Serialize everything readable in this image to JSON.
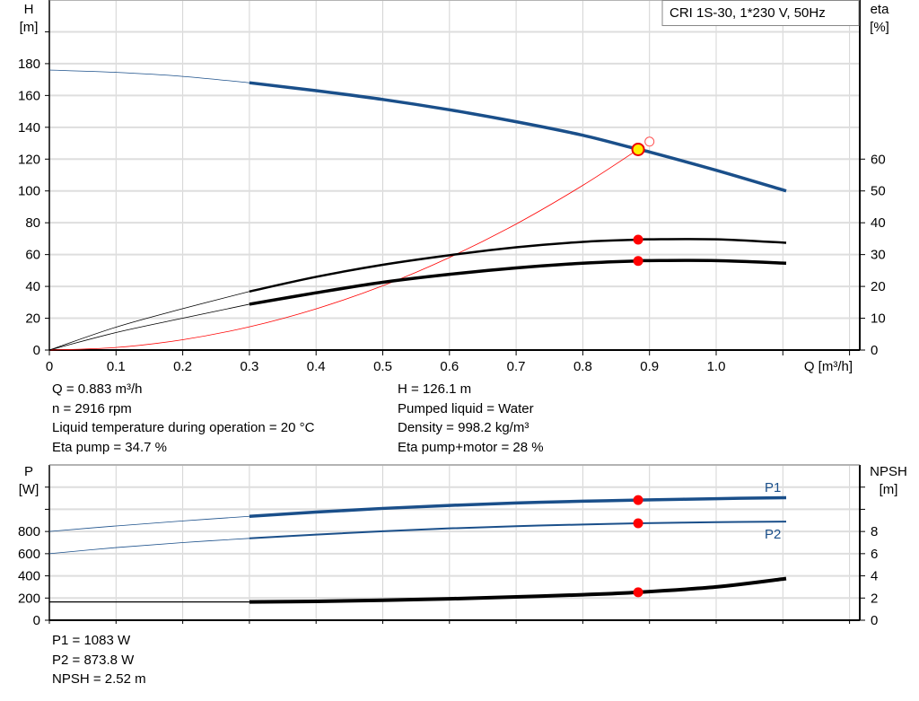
{
  "chart_data": [
    {
      "type": "line",
      "title": "CRI 1S-30, 1*230 V, 50Hz",
      "xlabel": "Q [m³/h]",
      "ylabel": "H\n[m]",
      "ylabel_lines": [
        "H",
        "[m]"
      ],
      "y2label_lines": [
        "eta",
        "[%]"
      ],
      "xlim": [
        0,
        1.2
      ],
      "ylim": [
        0,
        220
      ],
      "y2lim": [
        0,
        110
      ],
      "grid": true,
      "xticks": [
        "0",
        "0.1",
        "0.2",
        "0.3",
        "0.4",
        "0.5",
        "0.6",
        "0.7",
        "0.8",
        "0.9",
        "1.0"
      ],
      "yticks": [
        "0",
        "20",
        "40",
        "60",
        "80",
        "100",
        "120",
        "140",
        "160",
        "180"
      ],
      "y2ticks": [
        "0",
        "10",
        "20",
        "30",
        "40",
        "50",
        "60"
      ],
      "x": [
        0,
        0.1,
        0.2,
        0.3,
        0.4,
        0.5,
        0.6,
        0.7,
        0.8,
        0.883,
        0.9,
        1.0,
        1.105
      ],
      "series": [
        {
          "axis": "left",
          "color": "#1a4f8a",
          "values": [
            176,
            174.5,
            172,
            168,
            163,
            157.5,
            151,
            143.5,
            135,
            126.1,
            124.5,
            113,
            100
          ]
        },
        {
          "axis": "right",
          "color": "#000000",
          "values": [
            0,
            7.2,
            13,
            18.4,
            23,
            26.8,
            29.8,
            32.3,
            34,
            34.7,
            34.8,
            34.8,
            33.7
          ]
        },
        {
          "axis": "right",
          "color": "#000000",
          "values": [
            0,
            5.5,
            10,
            14.4,
            18,
            21.3,
            23.8,
            25.8,
            27.3,
            28,
            28.1,
            28.1,
            27.3
          ]
        }
      ],
      "system_curve": {
        "color": "#ff0000",
        "x": [
          0,
          0.1,
          0.2,
          0.3,
          0.4,
          0.5,
          0.6,
          0.7,
          0.8,
          0.883
        ],
        "values": [
          0,
          1.6,
          6.5,
          14.6,
          25.9,
          40.4,
          58.2,
          79.2,
          103.5,
          126.1
        ]
      },
      "duty_point": {
        "q": 0.883,
        "h": 126.1,
        "eta_pump": 34.7,
        "eta_total": 28
      },
      "requested_point": {
        "q": 0.9,
        "h": 131
      }
    },
    {
      "type": "line",
      "ylabel_lines": [
        "P",
        "[W]"
      ],
      "y2label_lines": [
        "NPSH",
        "[m]"
      ],
      "xlim": [
        0,
        1.2
      ],
      "ylim": [
        0,
        1400
      ],
      "y2lim": [
        0,
        14
      ],
      "grid": true,
      "yticks": [
        "0",
        "200",
        "400",
        "600",
        "800"
      ],
      "y2ticks": [
        "0",
        "2",
        "4",
        "6",
        "8"
      ],
      "x": [
        0,
        0.1,
        0.2,
        0.3,
        0.4,
        0.5,
        0.6,
        0.7,
        0.8,
        0.883,
        1.0,
        1.105
      ],
      "series": [
        {
          "name": "P1",
          "axis": "left",
          "color": "#1a4f8a",
          "values": [
            800,
            850,
            895,
            937,
            975,
            1008,
            1035,
            1057,
            1073,
            1083,
            1096,
            1105
          ]
        },
        {
          "name": "P2",
          "axis": "left",
          "color": "#1a4f8a",
          "values": [
            600,
            655,
            700,
            738,
            772,
            802,
            828,
            848,
            863,
            874,
            884,
            889
          ]
        },
        {
          "axis": "right",
          "color": "#000000",
          "values": [
            1.65,
            1.65,
            1.65,
            1.65,
            1.7,
            1.8,
            1.93,
            2.1,
            2.3,
            2.52,
            3.0,
            3.75
          ]
        }
      ]
    }
  ],
  "info_top_left": [
    "Q = 0.883 m³/h",
    "n = 2916 rpm",
    "Liquid temperature during operation = 20 °C",
    "Eta pump = 34.7 %"
  ],
  "info_top_right": [
    "H = 126.1 m",
    "Pumped liquid = Water",
    "Density = 998.2 kg/m³",
    "Eta pump+motor = 28 %"
  ],
  "info_bottom": [
    "P1 = 1083 W",
    "P2 = 873.8 W",
    "NPSH = 2.52 m"
  ]
}
